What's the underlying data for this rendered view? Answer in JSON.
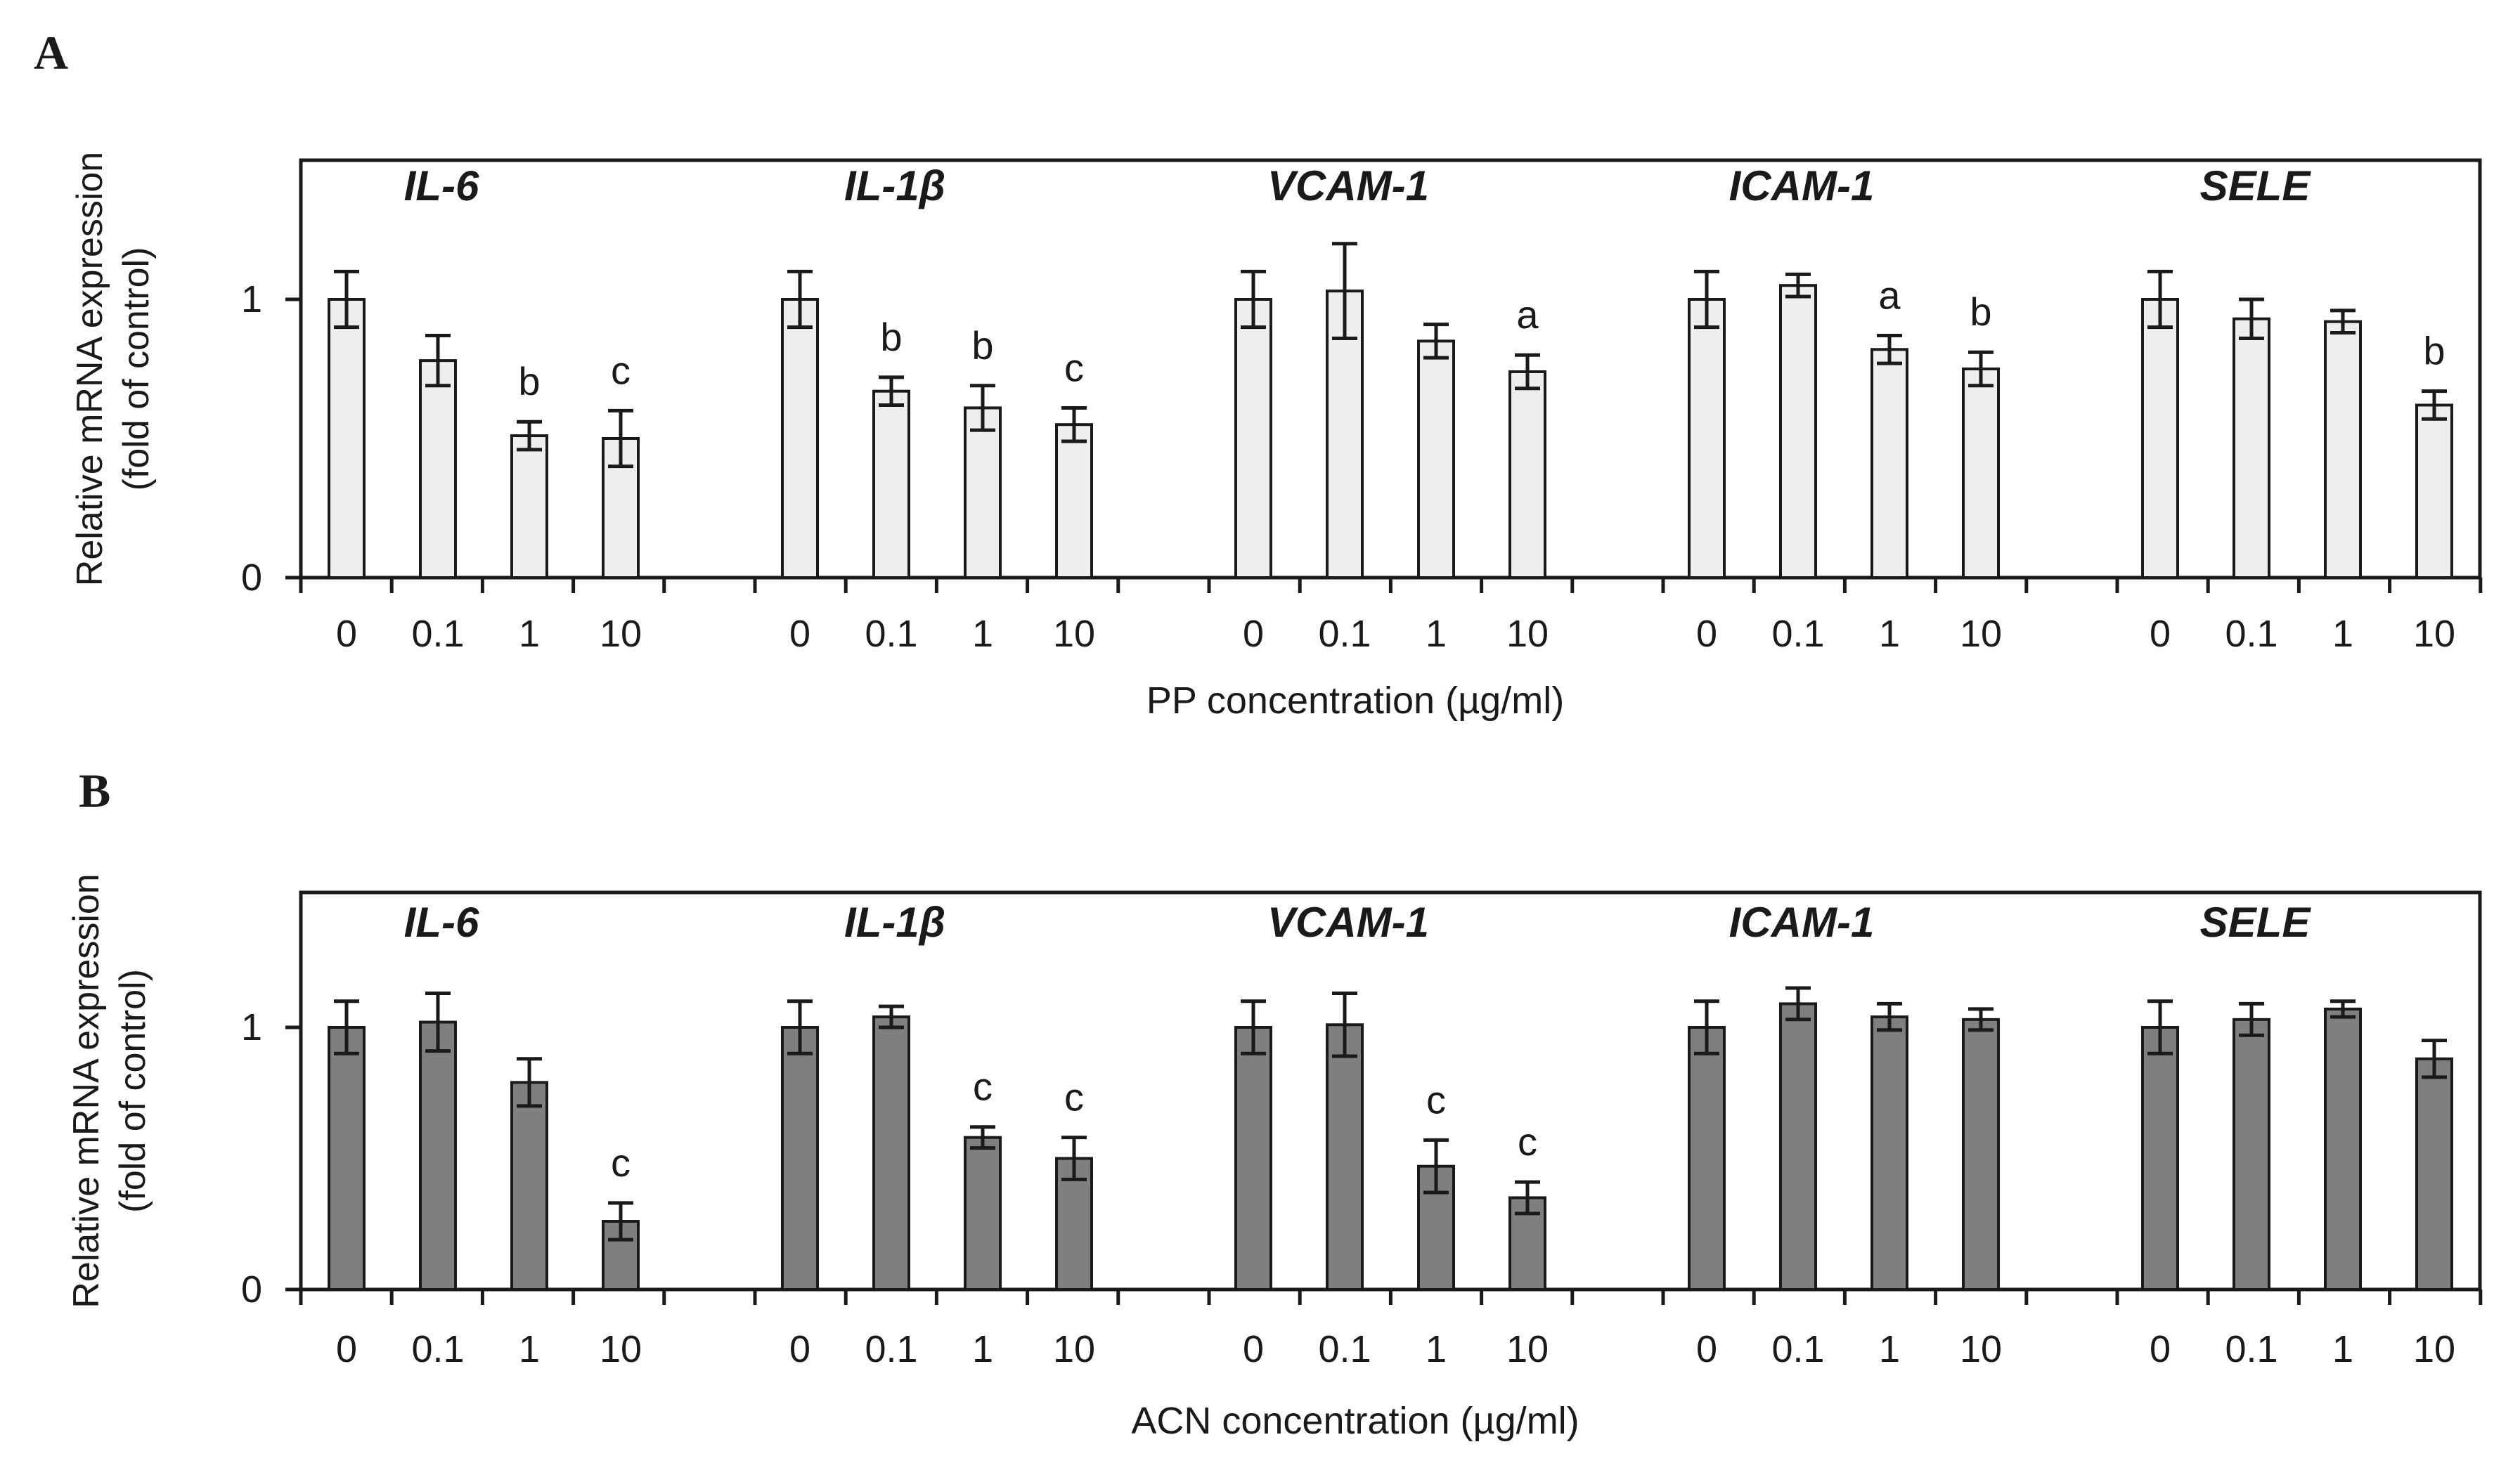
{
  "chart_data": [
    {
      "type": "bar",
      "panel": "A",
      "xlabel": "PP concentration (µg/ml)",
      "ylabel_lines": [
        "Relative mRNA expression",
        "(fold of control)"
      ],
      "ylim": [
        0,
        1.5
      ],
      "yticks": [
        "0",
        "1"
      ],
      "bar_color": "#eeeeee",
      "groups": [
        {
          "gene": "IL-6",
          "categories": [
            "0",
            "0.1",
            "1",
            "10"
          ],
          "values": [
            1.0,
            0.78,
            0.51,
            0.5
          ],
          "errors": [
            0.1,
            0.09,
            0.05,
            0.1
          ],
          "labels": [
            "",
            "",
            "b",
            "c"
          ]
        },
        {
          "gene": "IL-1β",
          "categories": [
            "0",
            "0.1",
            "1",
            "10"
          ],
          "values": [
            1.0,
            0.67,
            0.61,
            0.55
          ],
          "errors": [
            0.1,
            0.05,
            0.08,
            0.06
          ],
          "labels": [
            "",
            "b",
            "b",
            "c"
          ]
        },
        {
          "gene": "VCAM-1",
          "categories": [
            "0",
            "0.1",
            "1",
            "10"
          ],
          "values": [
            1.0,
            1.03,
            0.85,
            0.74
          ],
          "errors": [
            0.1,
            0.17,
            0.06,
            0.06
          ],
          "labels": [
            "",
            "",
            "",
            "a"
          ]
        },
        {
          "gene": "ICAM-1",
          "categories": [
            "0",
            "0.1",
            "1",
            "10"
          ],
          "values": [
            1.0,
            1.05,
            0.82,
            0.75
          ],
          "errors": [
            0.1,
            0.04,
            0.05,
            0.06
          ],
          "labels": [
            "",
            "",
            "a",
            "b"
          ]
        },
        {
          "gene": "SELE",
          "categories": [
            "0",
            "0.1",
            "1",
            "10"
          ],
          "values": [
            1.0,
            0.93,
            0.92,
            0.62
          ],
          "errors": [
            0.1,
            0.07,
            0.04,
            0.05
          ],
          "labels": [
            "",
            "",
            "",
            "b"
          ]
        }
      ]
    },
    {
      "type": "bar",
      "panel": "B",
      "xlabel": "ACN concentration (µg/ml)",
      "ylabel_lines": [
        "Relative mRNA expression",
        "(fold of control)"
      ],
      "ylim": [
        0,
        1.5
      ],
      "yticks": [
        "0",
        "1"
      ],
      "bar_color": "#7f7f7f",
      "groups": [
        {
          "gene": "IL-6",
          "categories": [
            "0",
            "0.1",
            "1",
            "10"
          ],
          "values": [
            1.0,
            1.02,
            0.79,
            0.26
          ],
          "errors": [
            0.1,
            0.11,
            0.09,
            0.07
          ],
          "labels": [
            "",
            "",
            "",
            "c"
          ]
        },
        {
          "gene": "IL-1β",
          "categories": [
            "0",
            "0.1",
            "1",
            "10"
          ],
          "values": [
            1.0,
            1.04,
            0.58,
            0.5
          ],
          "errors": [
            0.1,
            0.04,
            0.04,
            0.08
          ],
          "labels": [
            "",
            "",
            "c",
            "c"
          ]
        },
        {
          "gene": "VCAM-1",
          "categories": [
            "0",
            "0.1",
            "1",
            "10"
          ],
          "values": [
            1.0,
            1.01,
            0.47,
            0.35
          ],
          "errors": [
            0.1,
            0.12,
            0.1,
            0.06
          ],
          "labels": [
            "",
            "",
            "c",
            "c"
          ]
        },
        {
          "gene": "ICAM-1",
          "categories": [
            "0",
            "0.1",
            "1",
            "10"
          ],
          "values": [
            1.0,
            1.09,
            1.04,
            1.03
          ],
          "errors": [
            0.1,
            0.06,
            0.05,
            0.04
          ],
          "labels": [
            "",
            "",
            "",
            ""
          ]
        },
        {
          "gene": "SELE",
          "categories": [
            "0",
            "0.1",
            "1",
            "10"
          ],
          "values": [
            1.0,
            1.03,
            1.07,
            0.88
          ],
          "errors": [
            0.1,
            0.06,
            0.03,
            0.07
          ],
          "labels": [
            "",
            "",
            "",
            ""
          ]
        }
      ]
    }
  ]
}
